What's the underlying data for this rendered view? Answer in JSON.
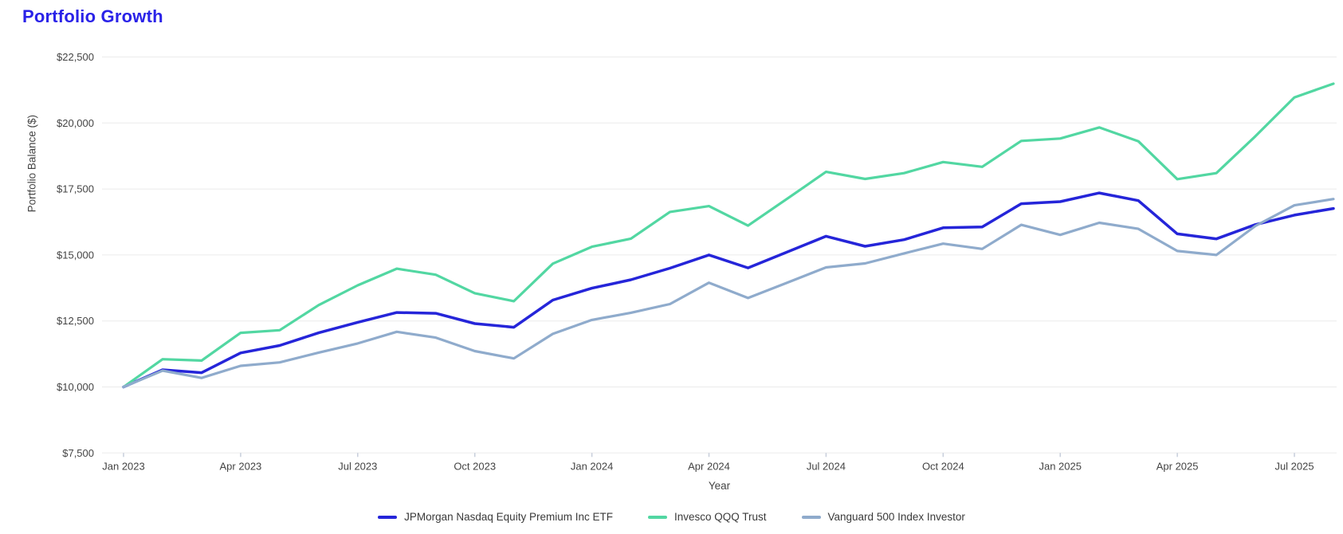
{
  "page": {
    "title": "Portfolio Growth",
    "title_color": "#2a22e8",
    "background": "#ffffff"
  },
  "chart_data": {
    "type": "line",
    "title": "Portfolio Growth",
    "xlabel": "Year",
    "ylabel": "Portfolio Balance ($)",
    "ylim": [
      7500,
      22500
    ],
    "grid": "horizontal",
    "legend_position": "bottom",
    "grid_color": "#ebebeb",
    "tick_color": "#c7cedb",
    "label_color": "#444444",
    "y_ticks": [
      {
        "value": 22500,
        "label": "$22,500"
      },
      {
        "value": 20000,
        "label": "$20,000"
      },
      {
        "value": 17500,
        "label": "$17,500"
      },
      {
        "value": 15000,
        "label": "$15,000"
      },
      {
        "value": 12500,
        "label": "$12,500"
      },
      {
        "value": 10000,
        "label": "$10,000"
      },
      {
        "value": 7500,
        "label": "$7,500"
      }
    ],
    "x_tick_labels": [
      "Jan 2023",
      "Apr 2023",
      "Jul 2023",
      "Oct 2023",
      "Jan 2024",
      "Apr 2024",
      "Jul 2024",
      "Oct 2024",
      "Jan 2025",
      "Apr 2025",
      "Jul 2025"
    ],
    "x_tick_every_n_points": 3,
    "months": [
      "Jan 2023",
      "Feb 2023",
      "Mar 2023",
      "Apr 2023",
      "May 2023",
      "Jun 2023",
      "Jul 2023",
      "Aug 2023",
      "Sep 2023",
      "Oct 2023",
      "Nov 2023",
      "Dec 2023",
      "Jan 2024",
      "Feb 2024",
      "Mar 2024",
      "Apr 2024",
      "May 2024",
      "Jun 2024",
      "Jul 2024",
      "Aug 2024",
      "Sep 2024",
      "Oct 2024",
      "Nov 2024",
      "Dec 2024",
      "Jan 2025",
      "Feb 2025",
      "Mar 2025",
      "Apr 2025",
      "May 2025",
      "Jun 2025",
      "Jul 2025",
      "Aug 2025"
    ],
    "series": [
      {
        "name": "JPMorgan Nasdaq Equity Premium Inc ETF",
        "color": "#2525d9",
        "stroke_width": 3.5,
        "values": [
          10000,
          10650,
          10540,
          11290,
          11570,
          12050,
          12450,
          12820,
          12790,
          12400,
          12260,
          13290,
          13740,
          14060,
          14500,
          15000,
          14510,
          15110,
          15710,
          15330,
          15580,
          16030,
          16060,
          16940,
          17020,
          17350,
          17060,
          15800,
          15610,
          16150,
          16510,
          16760
        ]
      },
      {
        "name": "Invesco QQQ Trust",
        "color": "#52d7a2",
        "stroke_width": 3.2,
        "values": [
          10000,
          11050,
          11000,
          12050,
          12150,
          13100,
          13850,
          14480,
          14250,
          13550,
          13250,
          14670,
          15310,
          15620,
          16630,
          16850,
          16110,
          17130,
          18150,
          17880,
          18100,
          18520,
          18340,
          19320,
          19410,
          19830,
          19310,
          17870,
          18100,
          19500,
          20970,
          21490
        ]
      },
      {
        "name": "Vanguard 500 Index Investor",
        "color": "#8fabcc",
        "stroke_width": 3.2,
        "values": [
          10000,
          10620,
          10340,
          10800,
          10930,
          11300,
          11650,
          12090,
          11870,
          11360,
          11080,
          12010,
          12540,
          12810,
          13140,
          13950,
          13370,
          13950,
          14530,
          14680,
          15060,
          15430,
          15230,
          16140,
          15760,
          16220,
          15990,
          15150,
          15000,
          16100,
          16880,
          17120
        ]
      }
    ]
  }
}
